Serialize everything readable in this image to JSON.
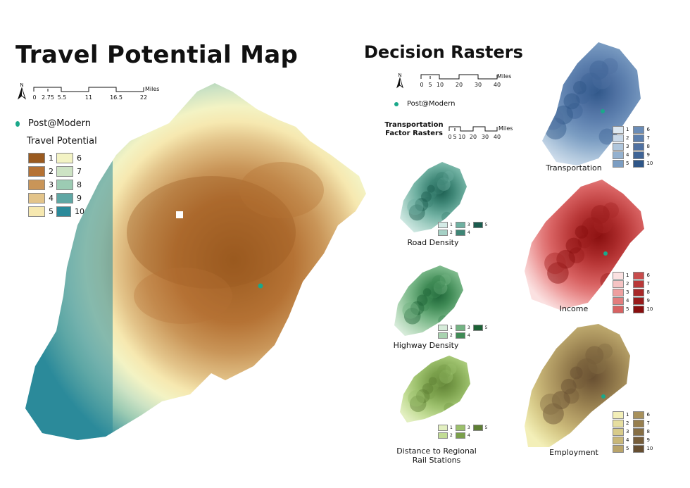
{
  "main": {
    "title": "Travel Potential Map",
    "north_label": "N",
    "scalebar": {
      "ticks": [
        "0",
        "2.75",
        "5.5",
        "11",
        "16.5",
        "22"
      ],
      "unit": "Miles"
    },
    "poi": {
      "label": "Post@Modern",
      "color": "#1aa88a"
    },
    "legend": {
      "title": "Travel Potential",
      "items": [
        {
          "label": "1",
          "color": "#9a5a1f"
        },
        {
          "label": "2",
          "color": "#b57234"
        },
        {
          "label": "3",
          "color": "#c99558"
        },
        {
          "label": "4",
          "color": "#e3c48a"
        },
        {
          "label": "5",
          "color": "#f6e8b0"
        },
        {
          "label": "6",
          "color": "#f3f3c4"
        },
        {
          "label": "7",
          "color": "#cde3c4"
        },
        {
          "label": "8",
          "color": "#9ccbb3"
        },
        {
          "label": "9",
          "color": "#5fa7a4"
        },
        {
          "label": "10",
          "color": "#2b8a9a"
        }
      ]
    }
  },
  "decision": {
    "title": "Decision Rasters",
    "north_label": "N",
    "scalebar": {
      "ticks": [
        "0",
        "5",
        "10",
        "20",
        "30",
        "40"
      ],
      "unit": "Miles"
    },
    "poi_label": "Post@Modern",
    "transport_factor": {
      "title_line1": "Transportation",
      "title_line2": "Factor Rasters",
      "scalebar": {
        "ticks": [
          "0",
          "5",
          "10",
          "20",
          "30",
          "40"
        ],
        "unit": "Miles"
      }
    },
    "rasters": [
      {
        "id": "transportation",
        "caption": "Transportation",
        "labels": [
          "1",
          "2",
          "3",
          "4",
          "5",
          "6",
          "7",
          "8",
          "9",
          "10"
        ],
        "colors": [
          "#dde8f1",
          "#c8d8e8",
          "#afc6dc",
          "#94b1cf",
          "#7b9dc2",
          "#6a8cb7",
          "#5b7ead",
          "#4f71a2",
          "#3f6496",
          "#2f5688"
        ]
      },
      {
        "id": "income",
        "caption": "Income",
        "labels": [
          "1",
          "2",
          "3",
          "4",
          "5",
          "6",
          "7",
          "8",
          "9",
          "10"
        ],
        "colors": [
          "#fbe1e1",
          "#f5c3c3",
          "#ee9f9f",
          "#e37d7d",
          "#d86262",
          "#c84c4c",
          "#b93838",
          "#a82828",
          "#981b1b",
          "#880e0e"
        ]
      },
      {
        "id": "employment",
        "caption": "Employment",
        "labels": [
          "1",
          "2",
          "3",
          "4",
          "5",
          "6",
          "7",
          "8",
          "9",
          "10"
        ],
        "colors": [
          "#f3efb8",
          "#e6dea0",
          "#d8cb8a",
          "#c9b778",
          "#b9a46a",
          "#a8915c",
          "#977f4f",
          "#866e44",
          "#765d3a",
          "#664e31"
        ]
      },
      {
        "id": "road_density",
        "caption": "Road Density",
        "labels": [
          "1",
          "2",
          "3",
          "4",
          "5"
        ],
        "colors": [
          "#d4ebe6",
          "#a6d1c6",
          "#6fb0a1",
          "#3e8676",
          "#1a5c4e"
        ]
      },
      {
        "id": "highway_density",
        "caption": "Highway Density",
        "labels": [
          "1",
          "2",
          "3",
          "4",
          "5"
        ],
        "colors": [
          "#d6ebd9",
          "#a9d3b0",
          "#73b383",
          "#3f8a55",
          "#1c6236"
        ]
      },
      {
        "id": "rail_distance",
        "caption_line1": "Distance to Regional",
        "caption_line2": "Rail Stations",
        "labels": [
          "1",
          "2",
          "3",
          "4",
          "5"
        ],
        "colors": [
          "#e2efc0",
          "#c2dc95",
          "#9cc06c",
          "#7a9f4b",
          "#5e7f34"
        ]
      }
    ]
  }
}
